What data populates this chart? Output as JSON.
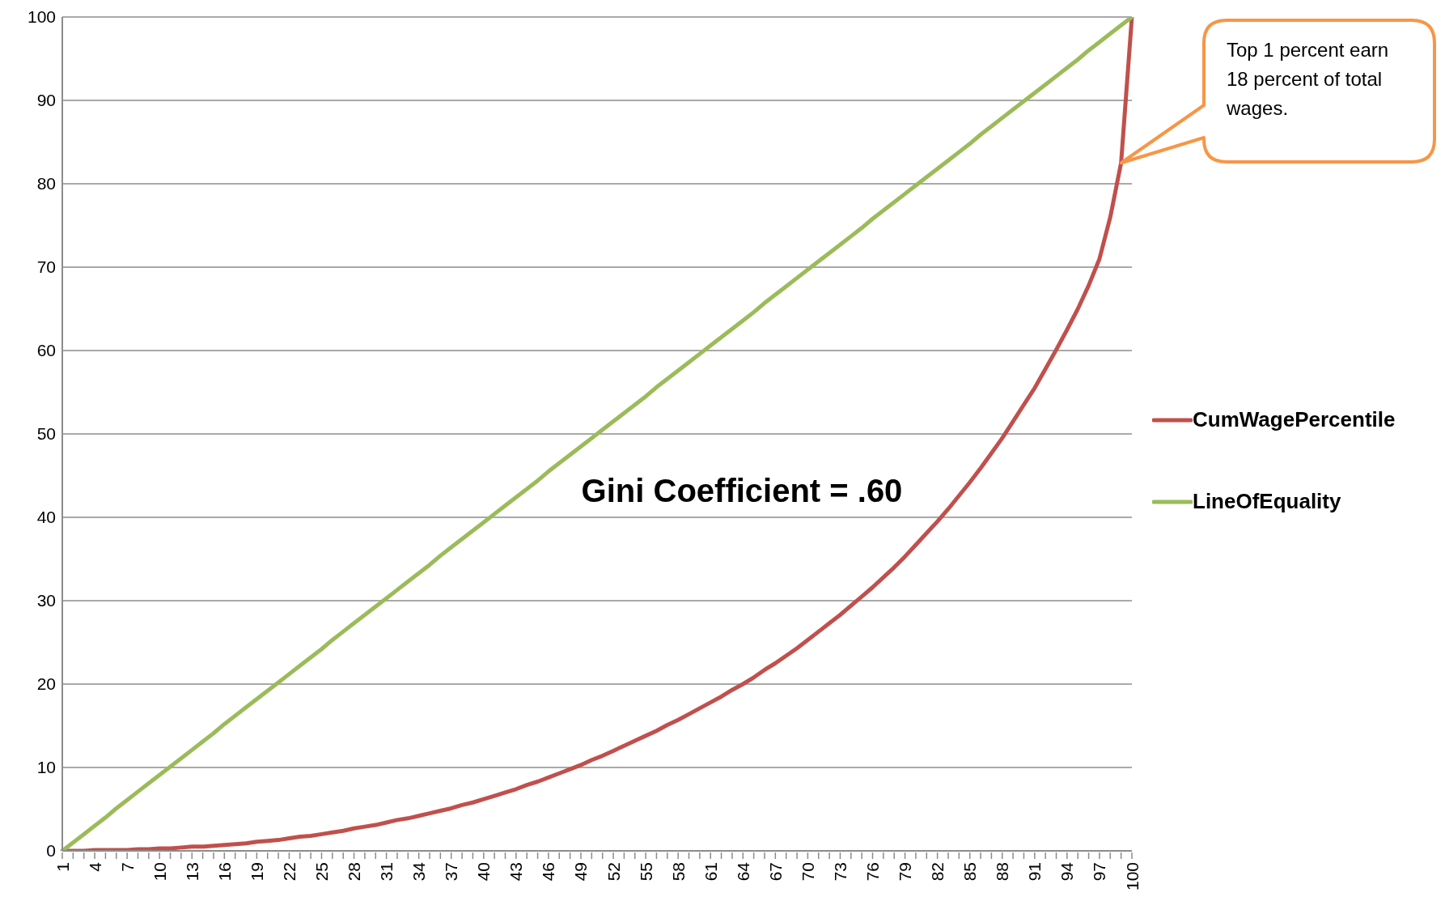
{
  "chart_data": {
    "type": "line",
    "categories": [
      "1",
      null,
      null,
      "4",
      null,
      null,
      "7",
      null,
      null,
      "10",
      null,
      null,
      "13",
      null,
      null,
      "16",
      null,
      null,
      "19",
      null,
      null,
      "22",
      null,
      null,
      "25",
      null,
      null,
      "28",
      null,
      null,
      "31",
      null,
      null,
      "34",
      null,
      null,
      "37",
      null,
      null,
      "40",
      null,
      null,
      "43",
      null,
      null,
      "46",
      null,
      null,
      "49",
      null,
      null,
      "52",
      null,
      null,
      "55",
      null,
      null,
      "58",
      null,
      null,
      "61",
      null,
      null,
      "64",
      null,
      null,
      "67",
      null,
      null,
      "70",
      null,
      null,
      "73",
      null,
      null,
      "76",
      null,
      null,
      "79",
      null,
      null,
      "82",
      null,
      null,
      "85",
      null,
      null,
      "88",
      null,
      null,
      "91",
      null,
      null,
      "94",
      null,
      null,
      "97",
      null,
      null,
      "100"
    ],
    "series": [
      {
        "name": "CumWagePercentile",
        "color": "#c0504d",
        "values": [
          0,
          0,
          0,
          0.1,
          0.1,
          0.1,
          0.1,
          0.2,
          0.2,
          0.3,
          0.3,
          0.4,
          0.5,
          0.5,
          0.6,
          0.7,
          0.8,
          0.9,
          1.1,
          1.2,
          1.3,
          1.5,
          1.7,
          1.8,
          2.0,
          2.2,
          2.4,
          2.7,
          2.9,
          3.1,
          3.4,
          3.7,
          3.9,
          4.2,
          4.5,
          4.8,
          5.1,
          5.5,
          5.8,
          6.2,
          6.6,
          7.0,
          7.4,
          7.9,
          8.3,
          8.8,
          9.3,
          9.8,
          10.3,
          10.9,
          11.4,
          12.0,
          12.6,
          13.2,
          13.8,
          14.4,
          15.1,
          15.7,
          16.4,
          17.1,
          17.8,
          18.5,
          19.3,
          20.0,
          20.8,
          21.7,
          22.5,
          23.4,
          24.3,
          25.3,
          26.3,
          27.3,
          28.3,
          29.4,
          30.5,
          31.6,
          32.8,
          34.0,
          35.3,
          36.7,
          38.1,
          39.5,
          41.0,
          42.6,
          44.2,
          45.9,
          47.7,
          49.5,
          51.5,
          53.5,
          55.5,
          57.8,
          60.1,
          62.5,
          65.0,
          67.8,
          71.0,
          76.0,
          82.5,
          100
        ]
      },
      {
        "name": "LineOfEquality",
        "color": "#9bbb59",
        "values": [
          0,
          1.0,
          2.0,
          3.0,
          4.0,
          5.1,
          6.1,
          7.1,
          8.1,
          9.1,
          10.1,
          11.1,
          12.1,
          13.1,
          14.1,
          15.2,
          16.2,
          17.2,
          18.2,
          19.2,
          20.2,
          21.2,
          22.2,
          23.2,
          24.2,
          25.3,
          26.3,
          27.3,
          28.3,
          29.3,
          30.3,
          31.3,
          32.3,
          33.3,
          34.3,
          35.4,
          36.4,
          37.4,
          38.4,
          39.4,
          40.4,
          41.4,
          42.4,
          43.4,
          44.4,
          45.5,
          46.5,
          47.5,
          48.5,
          49.5,
          50.5,
          51.5,
          52.5,
          53.5,
          54.5,
          55.6,
          56.6,
          57.6,
          58.6,
          59.6,
          60.6,
          61.6,
          62.6,
          63.6,
          64.6,
          65.7,
          66.7,
          67.7,
          68.7,
          69.7,
          70.7,
          71.7,
          72.7,
          73.7,
          74.7,
          75.8,
          76.8,
          77.8,
          78.8,
          79.8,
          80.8,
          81.8,
          82.8,
          83.8,
          84.8,
          85.9,
          86.9,
          87.9,
          88.9,
          89.9,
          90.9,
          91.9,
          92.9,
          93.9,
          94.9,
          96.0,
          97.0,
          98.0,
          99.0,
          100
        ]
      }
    ],
    "ylim": [
      0,
      100
    ],
    "yticks": [
      0,
      10,
      20,
      30,
      40,
      50,
      60,
      70,
      80,
      90,
      100
    ],
    "grid": "y",
    "legend": "right",
    "marker": "none",
    "line_style": "solid",
    "annotations": [
      "Gini Coefficient = .60",
      "Top 1 percent earn 18 percent of total wages."
    ]
  }
}
